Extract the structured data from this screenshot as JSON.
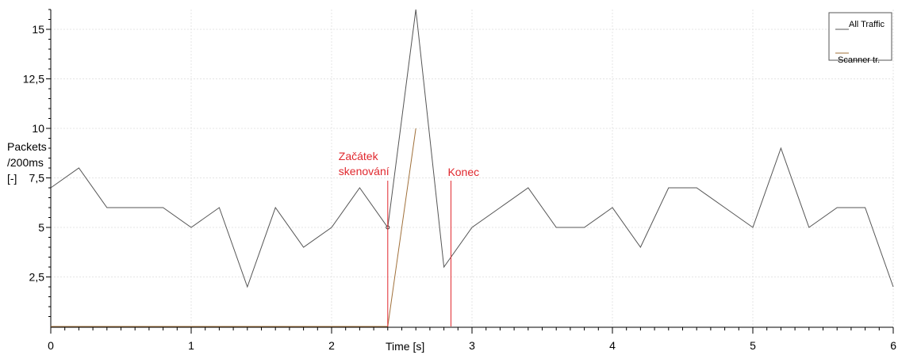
{
  "chart_data": {
    "type": "line",
    "xlabel": "Time [s]",
    "ylabel_lines": [
      "Packets",
      "/200ms",
      "[-]"
    ],
    "xlim": [
      0,
      6
    ],
    "ylim": [
      0,
      16
    ],
    "x_ticks": [
      {
        "v": 0,
        "label": "0"
      },
      {
        "v": 1,
        "label": "1"
      },
      {
        "v": 2,
        "label": "2"
      },
      {
        "v": 3,
        "label": "3"
      },
      {
        "v": 4,
        "label": "4"
      },
      {
        "v": 5,
        "label": "5"
      },
      {
        "v": 6,
        "label": "6"
      }
    ],
    "y_ticks": [
      {
        "v": 2.5,
        "label": "2,5"
      },
      {
        "v": 5,
        "label": "5"
      },
      {
        "v": 7.5,
        "label": "7,5"
      },
      {
        "v": 10,
        "label": "10"
      },
      {
        "v": 12.5,
        "label": "12,5"
      },
      {
        "v": 15,
        "label": "15"
      }
    ],
    "grid": true,
    "legend_position": "top-right",
    "series": [
      {
        "name": "All Traffic",
        "color": "#555555",
        "x": [
          0,
          0.2,
          0.4,
          0.6,
          0.8,
          1.0,
          1.2,
          1.4,
          1.6,
          1.8,
          2.0,
          2.2,
          2.4,
          2.6,
          2.8,
          3.0,
          3.2,
          3.4,
          3.6,
          3.8,
          4.0,
          4.2,
          4.4,
          4.6,
          4.8,
          5.0,
          5.2,
          5.4,
          5.6,
          5.8,
          6.0
        ],
        "y": [
          7,
          8,
          6,
          6,
          6,
          5,
          6,
          2,
          6,
          4,
          5,
          7,
          5,
          16,
          3,
          5,
          6,
          7,
          5,
          5,
          6,
          4,
          7,
          7,
          6,
          5,
          9,
          5,
          6,
          6,
          2
        ]
      },
      {
        "name": "Scanner tr.",
        "color": "#a0703a",
        "x": [
          0,
          2.4,
          2.6
        ],
        "y": [
          0,
          0,
          10
        ]
      }
    ],
    "highlight_point": {
      "x": 2.4,
      "y": 5
    },
    "annotations": [
      {
        "x": 2.4,
        "lines": [
          "Začátek",
          "skenování"
        ],
        "color": "#e0282e"
      },
      {
        "x": 2.85,
        "lines": [
          "Konec"
        ],
        "color": "#e0282e"
      }
    ]
  }
}
